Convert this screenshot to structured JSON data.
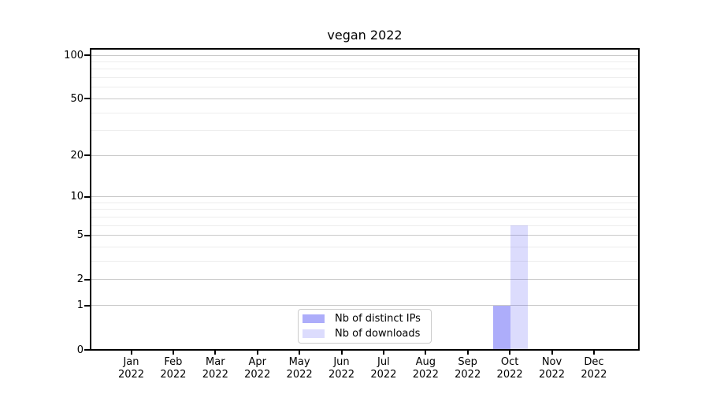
{
  "chart_data": {
    "type": "bar",
    "title": "vegan 2022",
    "categories": [
      "Jan 2022",
      "Feb 2022",
      "Mar 2022",
      "Apr 2022",
      "May 2022",
      "Jun 2022",
      "Jul 2022",
      "Aug 2022",
      "Sep 2022",
      "Oct 2022",
      "Nov 2022",
      "Dec 2022"
    ],
    "x_tick_labels": {
      "months": [
        "Jan",
        "Feb",
        "Mar",
        "Apr",
        "May",
        "Jun",
        "Jul",
        "Aug",
        "Sep",
        "Oct",
        "Nov",
        "Dec"
      ],
      "year": "2022"
    },
    "series": [
      {
        "name": "Nb of distinct IPs",
        "color": "rgba(80,80,245,0.47)",
        "values": [
          0,
          0,
          0,
          0,
          0,
          0,
          0,
          0,
          0,
          1,
          0,
          0
        ]
      },
      {
        "name": "Nb of downloads",
        "color": "rgba(80,80,245,0.20)",
        "values": [
          0,
          0,
          0,
          0,
          0,
          0,
          0,
          0,
          0,
          6,
          0,
          0
        ]
      }
    ],
    "y_axis": {
      "scale": "log1p",
      "tick_values": [
        0,
        1,
        2,
        5,
        10,
        20,
        50,
        100
      ],
      "minor_gridline_values": [
        3,
        4,
        6,
        7,
        8,
        9,
        30,
        40,
        60,
        70,
        80,
        90
      ],
      "ylim": [
        0,
        110.6
      ]
    },
    "grid": true,
    "legend_position": "lower center",
    "colors": {
      "axis": "#000000",
      "major_gridline": "#c9c9c9",
      "minor_gridline": "#ededed",
      "legend_border": "#cccccc"
    }
  }
}
